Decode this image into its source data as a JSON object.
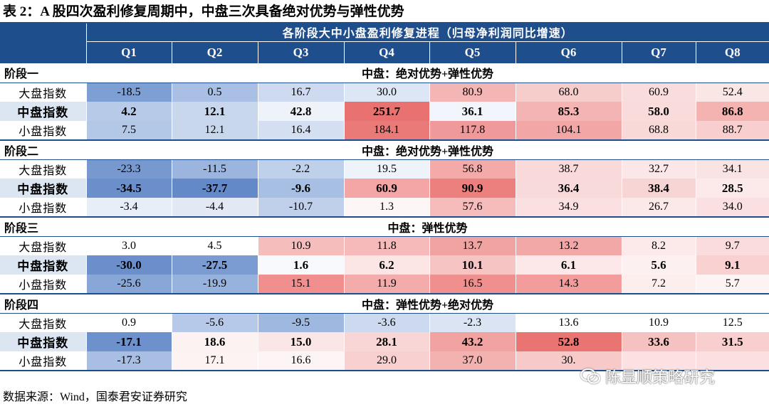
{
  "title": "表 2：A 股四次盈利修复周期中，中盘三次具备绝对优势与弹性优势",
  "header": {
    "span_title": "各阶段大中小盘盈利修复进程（归母净利润同比增速）",
    "quarters": [
      "Q1",
      "Q2",
      "Q3",
      "Q4",
      "Q5",
      "Q6",
      "Q7",
      "Q8"
    ]
  },
  "phases": [
    {
      "name": "阶段一",
      "summary": "中盘：绝对优势+弹性优势",
      "rows": [
        {
          "label": "大盘指数",
          "bold": false,
          "values": [
            "-18.5",
            "0.5",
            "16.7",
            "30.0",
            "80.9",
            "68.0",
            "60.9",
            "52.4"
          ],
          "colors": [
            "#7d9fd3",
            "#a9c0e4",
            "#cddaef",
            "#dde6f4",
            "#f4b6b5",
            "#f7cdcc",
            "#f9dcdc",
            "#fbe6e6"
          ]
        },
        {
          "label": "中盘指数",
          "bold": true,
          "values": [
            "4.2",
            "12.1",
            "42.8",
            "251.7",
            "36.1",
            "85.3",
            "58.0",
            "86.8"
          ],
          "colors": [
            "#b7cae8",
            "#c9d7ed",
            "#eef2f9",
            "#e9716f",
            "#f2f5fb",
            "#f4b4b3",
            "#f9dbdb",
            "#f4b2b1"
          ]
        },
        {
          "label": "小盘指数",
          "bold": false,
          "values": [
            "7.5",
            "12.1",
            "16.4",
            "184.1",
            "117.8",
            "104.1",
            "68.8",
            "88.7"
          ],
          "colors": [
            "#ffffff",
            "#ffffff",
            "#ffffff",
            "#ffffff",
            "#ffffff",
            "#ffffff",
            "#ffffff",
            "#ffffff"
          ]
        }
      ]
    },
    {
      "name": "阶段二",
      "summary": "中盘：绝对优势+弹性优势",
      "rows": [
        {
          "label": "大盘指数",
          "bold": false,
          "values": [
            "-23.3",
            "-11.5",
            "-2.2",
            "19.5",
            "56.8",
            "38.7",
            "32.7",
            "34.1"
          ],
          "colors": [
            "#7799d0",
            "#9bb5df",
            "#bfd0ea",
            "#eef2f9",
            "#f3aaa9",
            "#f9d9d9",
            "#fbe7e7",
            "#fae3e3"
          ]
        },
        {
          "label": "中盘指数",
          "bold": true,
          "values": [
            "-34.5",
            "-37.7",
            "-9.6",
            "60.9",
            "90.9",
            "36.4",
            "38.4",
            "28.5"
          ],
          "colors": [
            "#6a8fcb",
            "#6389c8",
            "#a7bfe3",
            "#f3a6a5",
            "#ec807e",
            "#f9dada",
            "#f8d5d5",
            "#fce9e9"
          ]
        },
        {
          "label": "小盘指数",
          "bold": false,
          "values": [
            "-3.4",
            "-4.4",
            "-10.7",
            "1.3",
            "57.6",
            "34.9",
            "26.7",
            "34.0"
          ],
          "colors": [
            "#ffffff",
            "#ffffff",
            "#ffffff",
            "#ffffff",
            "#ffffff",
            "#ffffff",
            "#ffffff",
            "#ffffff"
          ]
        }
      ]
    },
    {
      "name": "阶段三",
      "summary": "中盘：弹性优势",
      "rows": [
        {
          "label": "大盘指数",
          "bold": false,
          "values": [
            "3.0",
            "4.5",
            "10.9",
            "11.8",
            "13.7",
            "13.2",
            "8.2",
            "9.7"
          ],
          "colors": [
            "#ffffff",
            "#ffffff",
            "#f5bdbc",
            "#f5bab9",
            "#f1a3a2",
            "#f2a8a7",
            "#fce9e9",
            "#fadcdc"
          ]
        },
        {
          "label": "中盘指数",
          "bold": true,
          "values": [
            "-30.0",
            "-27.5",
            "1.6",
            "6.2",
            "10.1",
            "6.1",
            "5.6",
            "9.1"
          ],
          "colors": [
            "#6a8fcb",
            "#7a9cd2",
            "#f7f9fc",
            "#fbe5e5",
            "#f6c4c3",
            "#fce8e8",
            "#fdf0f0",
            "#f8d1d0"
          ]
        },
        {
          "label": "小盘指数",
          "bold": false,
          "values": [
            "-25.6",
            "-19.9",
            "15.1",
            "11.9",
            "16.5",
            "14.3",
            "7.2",
            "5.7"
          ],
          "colors": [
            "#ffffff",
            "#ffffff",
            "#ffffff",
            "#ffffff",
            "#ffffff",
            "#ffffff",
            "#ffffff",
            "#ffffff"
          ]
        }
      ]
    },
    {
      "name": "阶段四",
      "summary": "中盘：弹性优势+绝对优势",
      "rows": [
        {
          "label": "大盘指数",
          "bold": false,
          "values": [
            "0.9",
            "-5.6",
            "-9.5",
            "-3.6",
            "-2.3",
            "13.6",
            "10.9",
            "12.5"
          ],
          "colors": [
            "#ffffff",
            "#b6c9e8",
            "#9fb8e0",
            "#ccd9ee",
            "#dbe4f3",
            "#ffffff",
            "#ffffff",
            "#ffffff"
          ]
        },
        {
          "label": "中盘指数",
          "bold": true,
          "values": [
            "-17.1",
            "18.6",
            "15.0",
            "28.1",
            "43.2",
            "52.8",
            "33.6",
            "31.5"
          ],
          "colors": [
            "#6d91cc",
            "#fdf2f2",
            "#fbe6e6",
            "#f9d6d6",
            "#f1a3a2",
            "#ea7472",
            "#f6c2c1",
            "#f8cfce"
          ]
        },
        {
          "label": "小盘指数",
          "bold": false,
          "values": [
            "-17.3",
            "17.1",
            "16.6",
            "29.0",
            "37.0",
            "30.",
            "",
            ""
          ],
          "colors": [
            "#ffffff",
            "#ffffff",
            "#ffffff",
            "#ffffff",
            "#ffffff",
            "#ffffff",
            "#ffffff",
            "#ffffff"
          ]
        }
      ]
    }
  ],
  "phase_colors_small": [
    [
      "#b3c7e7",
      "#c9d7ed",
      "#d4e0f1",
      "#ea7a78",
      "#f0999b",
      "#f2a6a5",
      "#f9d8d8",
      "#f8cfce"
    ],
    [
      "#e7eef8",
      "#e2e9f5",
      "#c0d0ea",
      "#fdf6f6",
      "#f5bcbb",
      "#fae0e0",
      "#fbe8e8",
      "#fae0e0"
    ],
    [
      "#88a7d6",
      "#97b2dd",
      "#f08f8d",
      "#f3acab",
      "#ef8f8e",
      "#f29d9c",
      "#fdeeee",
      "#fdf3f3"
    ],
    [
      "#a8bfe3",
      "#fdf3f3",
      "#fdf5f5",
      "#f8d0cf",
      "#f3b1b0",
      "#f7cac9",
      "#fbe1e1",
      "#fae0e0"
    ]
  ],
  "source": "数据来源：Wind，国泰君安证券研究",
  "watermark": "陈显顺策略研究"
}
